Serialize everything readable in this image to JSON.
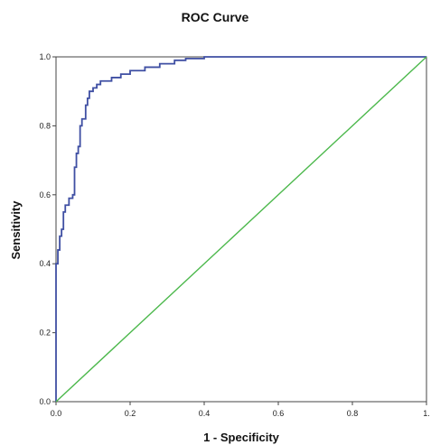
{
  "chart_data": {
    "type": "line",
    "title": "ROC Curve",
    "xlabel": "1 - Specificity",
    "ylabel": "Sensitivity",
    "xlim": [
      0,
      1
    ],
    "ylim": [
      0,
      1
    ],
    "x_ticks": [
      0.0,
      0.2,
      0.4,
      0.6,
      0.8,
      1.0
    ],
    "x_tick_labels": [
      "0.0",
      "0.2",
      "0.4",
      "0.6",
      "0.8",
      "1."
    ],
    "y_ticks": [
      0.0,
      0.2,
      0.4,
      0.6,
      0.8,
      1.0
    ],
    "y_tick_labels": [
      "0.0",
      "0.2",
      "0.4",
      "0.6",
      "0.8",
      "1.0"
    ],
    "grid": false,
    "legend": "none",
    "series": [
      {
        "color": "#3f4fa3",
        "style": "step",
        "x": [
          0.0,
          0.0,
          0.005,
          0.005,
          0.01,
          0.01,
          0.015,
          0.015,
          0.02,
          0.02,
          0.025,
          0.025,
          0.035,
          0.035,
          0.045,
          0.045,
          0.05,
          0.05,
          0.055,
          0.055,
          0.06,
          0.06,
          0.065,
          0.065,
          0.07,
          0.07,
          0.08,
          0.08,
          0.085,
          0.085,
          0.09,
          0.09,
          0.1,
          0.1,
          0.11,
          0.11,
          0.12,
          0.12,
          0.15,
          0.15,
          0.175,
          0.175,
          0.2,
          0.2,
          0.24,
          0.24,
          0.28,
          0.28,
          0.32,
          0.32,
          0.35,
          0.35,
          0.4,
          0.4,
          0.45,
          0.45,
          0.5,
          0.5,
          0.56,
          0.56,
          1.0
        ],
        "y": [
          0.0,
          0.4,
          0.4,
          0.44,
          0.44,
          0.48,
          0.48,
          0.5,
          0.5,
          0.55,
          0.55,
          0.57,
          0.57,
          0.59,
          0.59,
          0.6,
          0.6,
          0.68,
          0.68,
          0.72,
          0.72,
          0.74,
          0.74,
          0.8,
          0.8,
          0.82,
          0.82,
          0.86,
          0.86,
          0.88,
          0.88,
          0.9,
          0.9,
          0.91,
          0.91,
          0.92,
          0.92,
          0.93,
          0.93,
          0.94,
          0.94,
          0.95,
          0.95,
          0.96,
          0.96,
          0.97,
          0.97,
          0.98,
          0.98,
          0.99,
          0.99,
          0.995,
          0.995,
          1.0,
          1.0,
          1.0,
          1.0,
          1.0,
          1.0,
          1.0,
          1.0
        ]
      },
      {
        "color": "#4cb84c",
        "style": "line",
        "x": [
          0.0,
          1.0
        ],
        "y": [
          0.0,
          1.0
        ]
      }
    ]
  }
}
